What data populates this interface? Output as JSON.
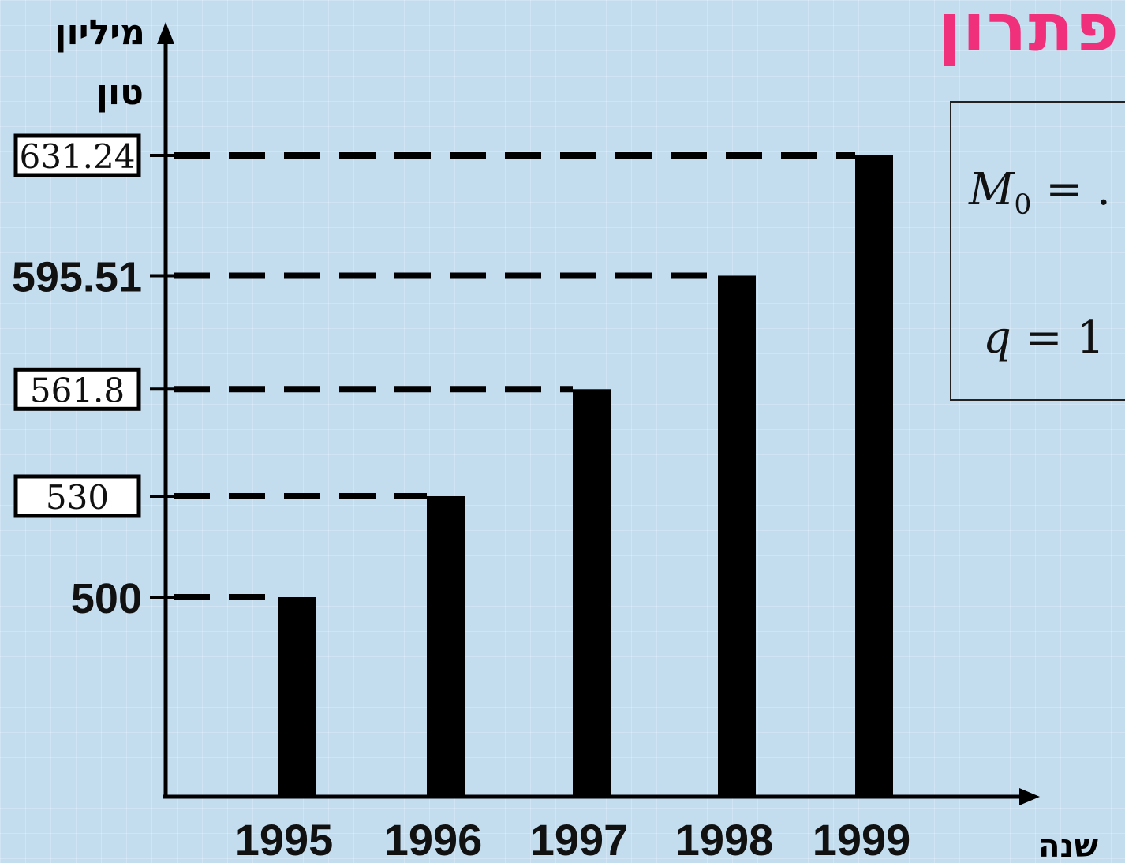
{
  "title": "פתרון",
  "colors": {
    "title": "#f0307a",
    "bars": "#000000",
    "background": "#c3ddef"
  },
  "formulas": {
    "m0_var": "M",
    "m0_sub": "0",
    "m0_rest": "= .",
    "q_var": "q",
    "q_rest": "= 1"
  },
  "chart_data": {
    "type": "bar",
    "ylabel_line1": "מיליון",
    "ylabel_line2": "טון",
    "xlabel": "שנה",
    "categories": [
      "1995",
      "1996",
      "1997",
      "1998",
      "1999"
    ],
    "values": [
      500,
      530,
      561.8,
      595.51,
      631.24
    ],
    "y_ticks": [
      {
        "value": 631.24,
        "label": "631.24",
        "boxed": true
      },
      {
        "value": 595.51,
        "label": "595.51",
        "boxed": false
      },
      {
        "value": 561.8,
        "label": "561.8",
        "boxed": true
      },
      {
        "value": 530,
        "label": "530",
        "boxed": true
      },
      {
        "value": 500,
        "label": "500",
        "boxed": false
      }
    ],
    "reference_lines": "dashed",
    "axis_break": true
  }
}
